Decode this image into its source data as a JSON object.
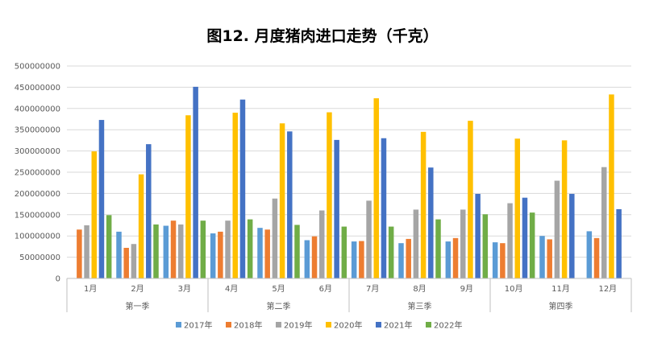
{
  "chart_data": {
    "type": "bar",
    "title": "图12. 月度猪肉进口走势（千克）",
    "categories": [
      "1月",
      "2月",
      "3月",
      "4月",
      "5月",
      "6月",
      "7月",
      "8月",
      "9月",
      "10月",
      "11月",
      "12月"
    ],
    "groups": [
      {
        "label": "第一季",
        "months": 3
      },
      {
        "label": "第二季",
        "months": 3
      },
      {
        "label": "第三季",
        "months": 3
      },
      {
        "label": "第四季",
        "months": 3
      }
    ],
    "ylim": [
      0,
      500000000
    ],
    "yticks": [
      "0",
      "50000000",
      "100000000",
      "150000000",
      "200000000",
      "250000000",
      "300000000",
      "350000000",
      "400000000",
      "450000000",
      "500000000"
    ],
    "grid": true,
    "legend_position": "bottom",
    "series": [
      {
        "name": "2017年",
        "color": "#5B9BD5",
        "values": [
          null,
          110000000,
          124000000,
          106000000,
          119000000,
          90000000,
          87000000,
          83000000,
          87000000,
          85000000,
          100000000,
          111000000
        ]
      },
      {
        "name": "2018年",
        "color": "#ED7D31",
        "values": [
          115000000,
          72000000,
          136000000,
          110000000,
          115000000,
          99000000,
          88000000,
          93000000,
          95000000,
          83000000,
          92000000,
          95000000
        ]
      },
      {
        "name": "2019年",
        "color": "#A5A5A5",
        "values": [
          125000000,
          81000000,
          127000000,
          136000000,
          188000000,
          160000000,
          183000000,
          162000000,
          162000000,
          177000000,
          230000000,
          262000000
        ]
      },
      {
        "name": "2020年",
        "color": "#FFC000",
        "values": [
          299000000,
          245000000,
          384000000,
          390000000,
          365000000,
          391000000,
          424000000,
          345000000,
          371000000,
          329000000,
          325000000,
          433000000
        ]
      },
      {
        "name": "2021年",
        "color": "#4472C4",
        "values": [
          373000000,
          316000000,
          451000000,
          421000000,
          346000000,
          326000000,
          330000000,
          261000000,
          199000000,
          190000000,
          199000000,
          163000000
        ]
      },
      {
        "name": "2022年",
        "color": "#70AD47",
        "values": [
          149000000,
          127000000,
          136000000,
          139000000,
          126000000,
          122000000,
          122000000,
          139000000,
          151000000,
          155000000,
          null,
          null
        ]
      }
    ]
  }
}
